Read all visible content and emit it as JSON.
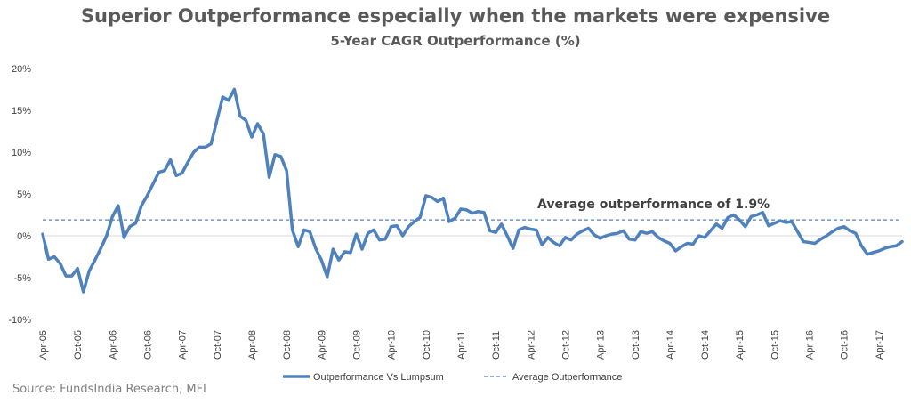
{
  "header": {
    "title": "Superior Outperformance especially when the markets were expensive",
    "subtitle": "5-Year CAGR Outperformance (%)"
  },
  "footer": {
    "source": "Source: FundsIndia Research, MFI"
  },
  "colors": {
    "series": "#4f81bd",
    "average": "#4f81bd",
    "text": "#404040",
    "title": "#595959"
  },
  "chart_data": {
    "type": "line",
    "title": "Superior Outperformance especially when the markets were expensive",
    "subtitle": "5-Year CAGR Outperformance (%)",
    "xlabel": "",
    "ylabel": "",
    "ylim": [
      -10,
      20
    ],
    "y_ticks": [
      -10,
      -5,
      0,
      5,
      10,
      15,
      20
    ],
    "y_tick_labels": [
      "-10%",
      "-5%",
      "0%",
      "5%",
      "10%",
      "15%",
      "20%"
    ],
    "x_tick_labels": [
      "Apr-05",
      "Oct-05",
      "Apr-06",
      "Oct-06",
      "Apr-07",
      "Oct-07",
      "Apr-08",
      "Oct-08",
      "Apr-09",
      "Oct-09",
      "Apr-10",
      "Oct-10",
      "Apr-11",
      "Oct-11",
      "Apr-12",
      "Oct-12",
      "Apr-13",
      "Oct-13",
      "Apr-14",
      "Oct-14",
      "Apr-15",
      "Oct-15",
      "Apr-16",
      "Oct-16",
      "Apr-17"
    ],
    "x_tick_index": [
      0,
      6,
      12,
      18,
      24,
      30,
      36,
      42,
      48,
      54,
      60,
      66,
      72,
      78,
      84,
      90,
      96,
      102,
      108,
      114,
      120,
      126,
      132,
      138,
      144
    ],
    "grid": false,
    "legend_position": "bottom",
    "annotation": "Average outperformance of 1.9%",
    "series": [
      {
        "name": "Outperformance Vs Lumpsum",
        "style": "solid",
        "values": [
          0.2,
          -2.8,
          -2.5,
          -3.3,
          -4.8,
          -4.8,
          -3.9,
          -6.7,
          -4.2,
          -2.9,
          -1.5,
          0.0,
          2.3,
          3.6,
          -0.2,
          1.1,
          1.5,
          3.6,
          4.8,
          6.2,
          7.6,
          7.8,
          9.1,
          7.2,
          7.5,
          8.8,
          10.0,
          10.6,
          10.6,
          11.0,
          13.8,
          16.6,
          16.2,
          17.5,
          14.3,
          13.8,
          11.8,
          13.4,
          12.2,
          7.0,
          9.7,
          9.5,
          7.8,
          0.7,
          -1.3,
          0.7,
          0.5,
          -1.5,
          -2.9,
          -4.9,
          -1.6,
          -2.9,
          -1.9,
          -2.0,
          0.2,
          -1.6,
          0.3,
          0.7,
          -0.5,
          -0.4,
          1.1,
          1.2,
          0.0,
          1.1,
          1.7,
          2.2,
          4.8,
          4.6,
          4.1,
          4.5,
          1.7,
          2.1,
          3.2,
          3.1,
          2.7,
          2.9,
          2.8,
          0.6,
          0.4,
          1.4,
          0.0,
          -1.5,
          0.7,
          1.0,
          0.8,
          0.7,
          -1.1,
          -0.2,
          -0.8,
          -1.2,
          -0.2,
          -0.5,
          0.2,
          0.6,
          0.9,
          0.1,
          -0.3,
          0.0,
          0.2,
          0.3,
          0.6,
          -0.4,
          -0.5,
          0.5,
          0.3,
          0.5,
          -0.2,
          -0.6,
          -0.9,
          -1.8,
          -1.3,
          -0.9,
          -1.0,
          0.0,
          -0.2,
          0.6,
          1.4,
          0.9,
          2.2,
          2.5,
          1.9,
          1.1,
          2.3,
          2.5,
          2.8,
          1.2,
          1.5,
          1.8,
          1.6,
          1.7,
          0.5,
          -0.7,
          -0.8,
          -0.9,
          -0.4,
          0.0,
          0.5,
          0.9,
          1.1,
          0.6,
          0.3,
          -1.2,
          -2.2,
          -2.0,
          -1.8,
          -1.5,
          -1.3,
          -1.2,
          -0.7
        ]
      },
      {
        "name": "Average Outperformance",
        "style": "dashed",
        "value": 1.9
      }
    ]
  }
}
